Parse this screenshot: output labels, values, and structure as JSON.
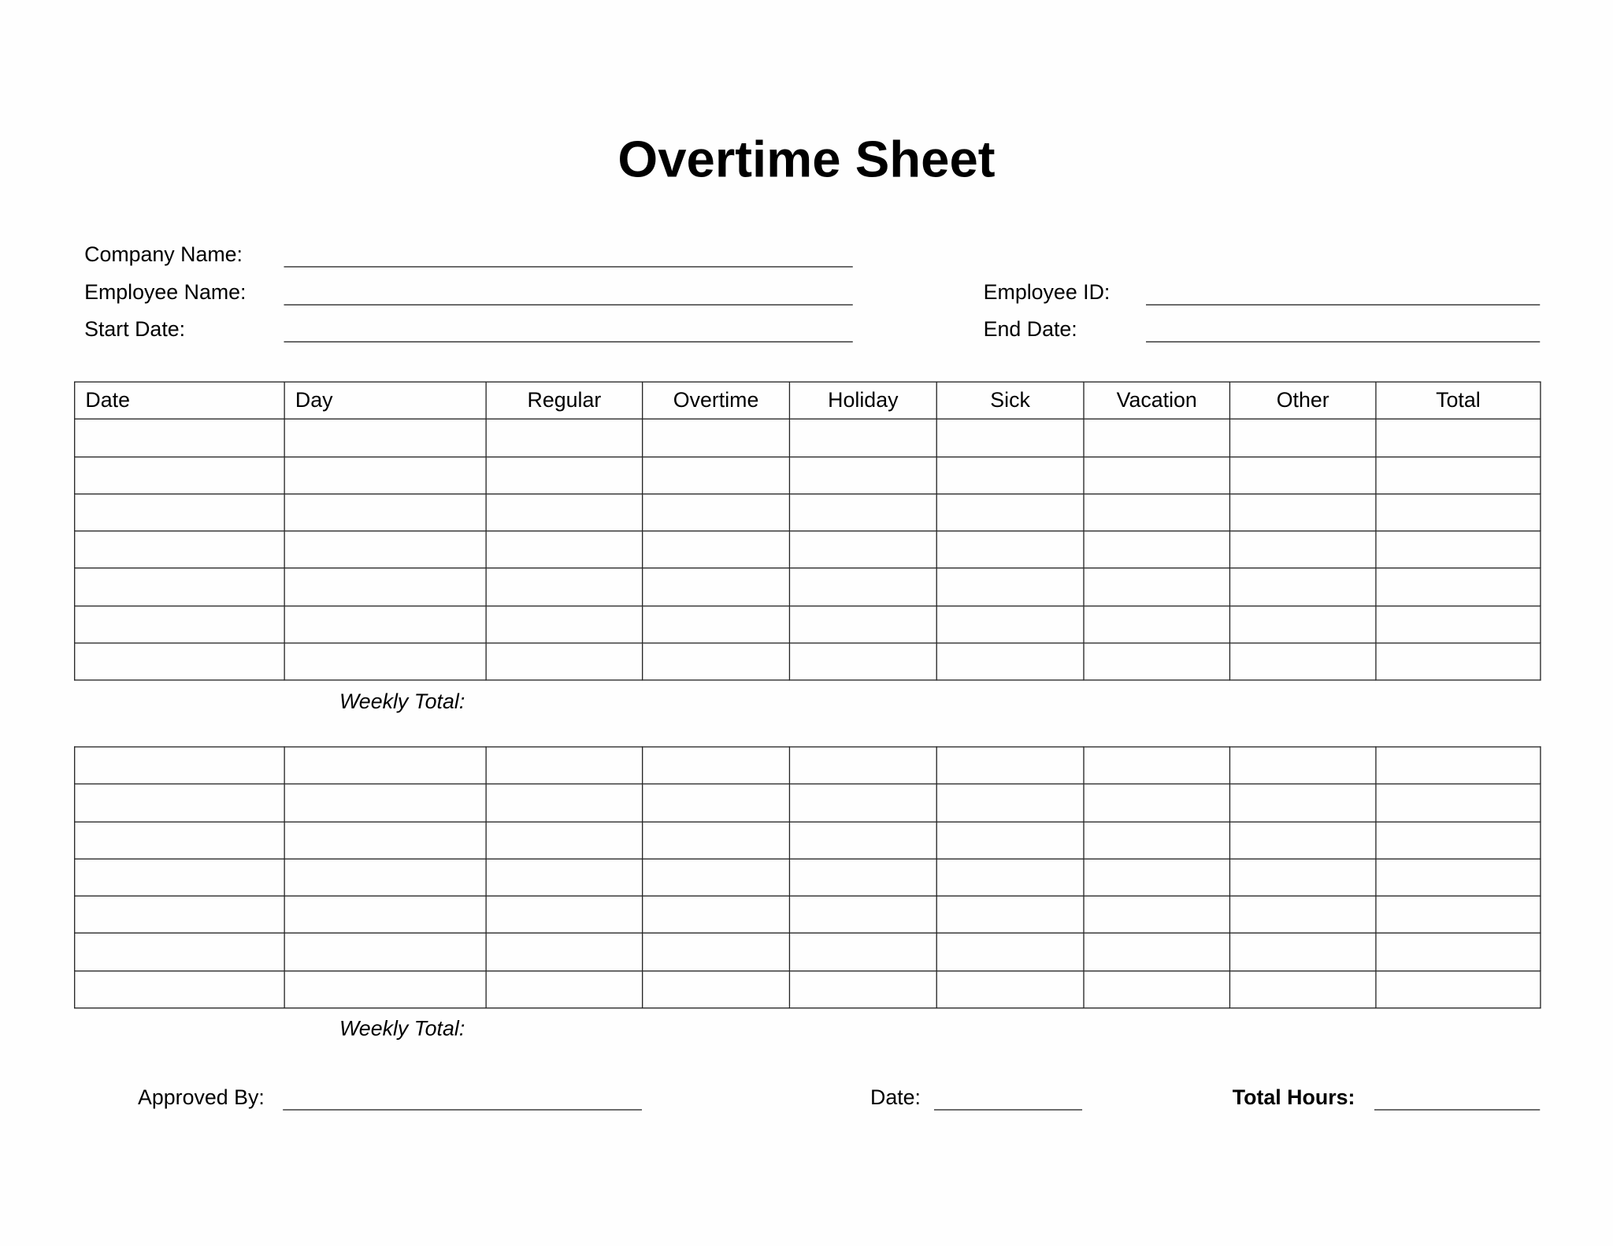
{
  "title": "Overtime Sheet",
  "fields": {
    "company_name": "Company Name:",
    "employee_name": "Employee Name:",
    "employee_id": "Employee ID:",
    "start_date": "Start Date:",
    "end_date": "End Date:"
  },
  "table": {
    "columns": [
      "Date",
      "Day",
      "Regular",
      "Overtime",
      "Holiday",
      "Sick",
      "Vacation",
      "Other",
      "Total"
    ],
    "weekly_total_label": "Weekly Total:"
  },
  "footer": {
    "approved_by": "Approved By:",
    "date": "Date:",
    "total_hours": "Total Hours:"
  }
}
